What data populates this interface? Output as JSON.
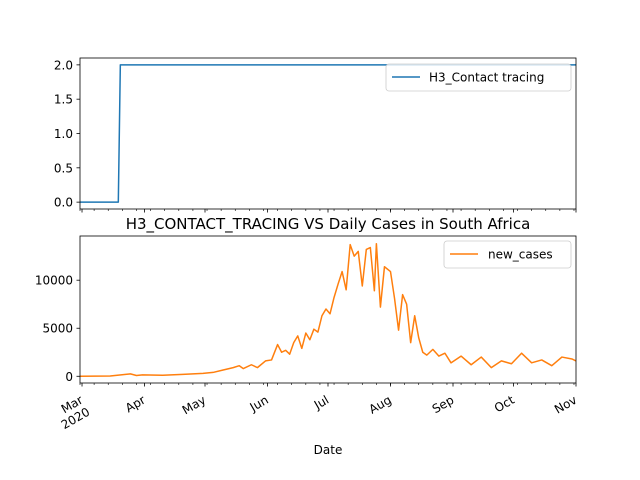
{
  "figure": {
    "xlabel": "Date"
  },
  "chart_data": [
    {
      "type": "line",
      "title": "",
      "xlabel": "",
      "ylabel": "",
      "ylim": [
        -0.1,
        2.1
      ],
      "yticks": [
        0.0,
        0.5,
        1.0,
        1.5,
        2.0
      ],
      "ytick_labels": [
        "0.0",
        "0.5",
        "1.0",
        "1.5",
        "2.0"
      ],
      "legend": "top-right",
      "series": [
        {
          "name": "H3_Contact tracing",
          "color": "#1f77b4",
          "x": [
            "2020-02-29",
            "2020-03-19",
            "2020-03-20",
            "2020-11-01"
          ],
          "values": [
            0,
            0,
            2,
            2
          ]
        }
      ]
    },
    {
      "type": "line",
      "title": "H3_CONTACT_TRACING VS Daily Cases in South Africa",
      "xlabel": "Date",
      "ylabel": "",
      "ylim": [
        -700,
        14600
      ],
      "yticks": [
        0,
        5000,
        10000
      ],
      "ytick_labels": [
        "0",
        "5000",
        "10000"
      ],
      "legend": "top-right",
      "xlim": [
        "2020-02-29",
        "2020-11-01"
      ],
      "xticks": [
        "2020-03-01",
        "2020-04-01",
        "2020-05-01",
        "2020-06-01",
        "2020-07-01",
        "2020-08-01",
        "2020-09-01",
        "2020-10-01",
        "2020-11-01"
      ],
      "xtick_labels": [
        "Mar\n2020",
        "Apr",
        "May",
        "Jun",
        "Jul",
        "Aug",
        "Sep",
        "Oct",
        "Nov"
      ],
      "series": [
        {
          "name": "new_cases",
          "color": "#ff7f0e",
          "x": [
            "2020-02-29",
            "2020-03-15",
            "2020-03-25",
            "2020-03-28",
            "2020-03-31",
            "2020-04-10",
            "2020-04-20",
            "2020-04-30",
            "2020-05-05",
            "2020-05-10",
            "2020-05-15",
            "2020-05-18",
            "2020-05-20",
            "2020-05-24",
            "2020-05-27",
            "2020-05-31",
            "2020-06-03",
            "2020-06-06",
            "2020-06-08",
            "2020-06-10",
            "2020-06-12",
            "2020-06-14",
            "2020-06-16",
            "2020-06-18",
            "2020-06-20",
            "2020-06-22",
            "2020-06-24",
            "2020-06-26",
            "2020-06-28",
            "2020-06-30",
            "2020-07-02",
            "2020-07-04",
            "2020-07-06",
            "2020-07-08",
            "2020-07-10",
            "2020-07-12",
            "2020-07-14",
            "2020-07-16",
            "2020-07-18",
            "2020-07-20",
            "2020-07-22",
            "2020-07-24",
            "2020-07-25",
            "2020-07-27",
            "2020-07-29",
            "2020-08-01",
            "2020-08-03",
            "2020-08-05",
            "2020-08-07",
            "2020-08-09",
            "2020-08-11",
            "2020-08-13",
            "2020-08-15",
            "2020-08-17",
            "2020-08-19",
            "2020-08-22",
            "2020-08-25",
            "2020-08-28",
            "2020-08-31",
            "2020-09-05",
            "2020-09-10",
            "2020-09-15",
            "2020-09-20",
            "2020-09-25",
            "2020-09-30",
            "2020-10-05",
            "2020-10-10",
            "2020-10-15",
            "2020-10-20",
            "2020-10-25",
            "2020-10-30",
            "2020-11-01"
          ],
          "values": [
            0,
            30,
            250,
            80,
            150,
            100,
            200,
            300,
            400,
            650,
            900,
            1100,
            800,
            1200,
            900,
            1600,
            1700,
            3300,
            2500,
            2700,
            2300,
            3500,
            4200,
            2900,
            4500,
            3800,
            4900,
            4600,
            6300,
            7000,
            6500,
            8200,
            9600,
            10900,
            9000,
            13700,
            12500,
            13000,
            9400,
            13200,
            13400,
            8900,
            13800,
            7200,
            11400,
            10900,
            8100,
            4800,
            8500,
            7500,
            3500,
            6300,
            4000,
            2500,
            2200,
            2800,
            2100,
            2400,
            1400,
            2100,
            1200,
            2000,
            900,
            1600,
            1300,
            2400,
            1400,
            1700,
            1100,
            2000,
            1800,
            1600
          ]
        }
      ]
    }
  ]
}
